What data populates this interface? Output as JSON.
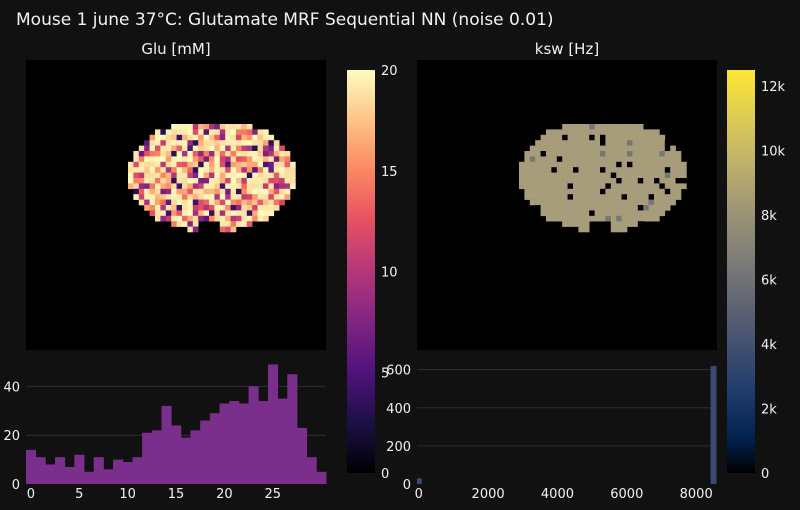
{
  "title": "Mouse 1 june 37°C: Glutamate MRF Sequential NN (noise 0.01)",
  "colors": {
    "background": "#111111",
    "image_background": "#000000",
    "hist_glu_bar": "#7b2f8c",
    "hist_ksw_bar": "#3a4a70",
    "grid": "#2e2e38"
  },
  "chart_data": [
    {
      "type": "heatmap",
      "title": "Glu [mM]",
      "colorscale": "magma",
      "colorbar": {
        "min": 0,
        "max": 20,
        "tick_labels": [
          "0",
          "5",
          "10",
          "15",
          "20"
        ],
        "tick_values": [
          0,
          5,
          10,
          15,
          20
        ]
      },
      "description_values": "brain-slice map, values mostly 15-20 with scattered lower pixels"
    },
    {
      "type": "heatmap",
      "title": "ksw [Hz]",
      "colorscale": "cividis",
      "colorbar": {
        "min": 0,
        "max": 12500,
        "tick_labels": [
          "0",
          "2k",
          "4k",
          "6k",
          "8k",
          "10k",
          "12k"
        ],
        "tick_values": [
          0,
          2000,
          4000,
          6000,
          8000,
          10000,
          12000
        ]
      },
      "dominant_value": 8500
    },
    {
      "type": "bar",
      "title": "",
      "xlim": [
        -0.5,
        30.5
      ],
      "ylim": [
        0,
        50
      ],
      "x_ticks": [
        0,
        5,
        10,
        15,
        20,
        25
      ],
      "y_ticks": [
        0,
        20,
        40
      ],
      "bins_start": 0,
      "bin_width": 1,
      "values": [
        14,
        11,
        8,
        11,
        7,
        12,
        5,
        11,
        6,
        10,
        9,
        11,
        21,
        22,
        32,
        24,
        19,
        22,
        26,
        29,
        33,
        34,
        33,
        40,
        34,
        49,
        35,
        45,
        23,
        11,
        5
      ]
    },
    {
      "type": "bar",
      "title": "",
      "xlim": [
        -50,
        8600
      ],
      "ylim": [
        0,
        640
      ],
      "x_ticks": [
        0,
        2000,
        4000,
        6000,
        8000
      ],
      "y_ticks": [
        0,
        200,
        400,
        600
      ],
      "bins": [
        {
          "x": 0,
          "value": 30
        },
        {
          "x": 8500,
          "value": 620
        }
      ],
      "bin_width": 170
    }
  ]
}
